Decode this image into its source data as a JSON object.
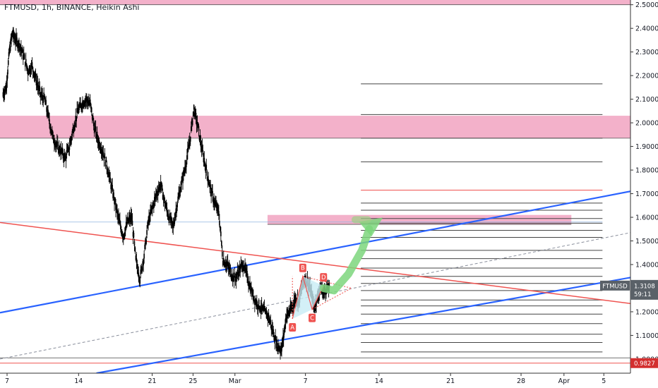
{
  "header": {
    "title": "FTMUSD, 1h, BINANCE, Heikin Ashi"
  },
  "colors": {
    "background": "#ffffff",
    "zone": "#f2a9c4",
    "blue_trend": "#2962ff",
    "red_trend": "#ef5350",
    "up_arrow": "#7cd67c",
    "pattern_fill": "#c8ecf5",
    "price_tag": "#5a6168",
    "low_tag": "#d32f2f",
    "candles": "#000000"
  },
  "chart_data": {
    "type": "line",
    "ylim": [
      0.94,
      2.52
    ],
    "y_ticks": [
      "2.5000",
      "2.4000",
      "2.3000",
      "2.2000",
      "2.1000",
      "2.0000",
      "1.9000",
      "1.8000",
      "1.7000",
      "1.6000",
      "1.5000",
      "1.4000",
      "1.3000",
      "1.2000",
      "1.1000",
      "1.0000"
    ],
    "y_tick_values": [
      2.5,
      2.4,
      2.3,
      2.2,
      2.1,
      2.0,
      1.9,
      1.8,
      1.7,
      1.6,
      1.5,
      1.4,
      1.3,
      1.2,
      1.1,
      1.0
    ],
    "xlim": [
      6.7,
      37.8
    ],
    "x_ticks": [
      "7",
      "14",
      "21",
      "25",
      "Mar",
      "7",
      "14",
      "21",
      "28",
      "Apr",
      "5"
    ],
    "x_tick_values": [
      7,
      14,
      21,
      25,
      29,
      36,
      43,
      50,
      57,
      61,
      65
    ],
    "x_tick_days": [
      7,
      14,
      21,
      25,
      29,
      36,
      43,
      50,
      57,
      61,
      65
    ],
    "price_path": [
      [
        7.0,
        2.12
      ],
      [
        7.3,
        2.15
      ],
      [
        7.6,
        2.3
      ],
      [
        7.9,
        2.38
      ],
      [
        8.2,
        2.35
      ],
      [
        8.6,
        2.33
      ],
      [
        9.0,
        2.28
      ],
      [
        9.4,
        2.22
      ],
      [
        9.8,
        2.24
      ],
      [
        10.2,
        2.18
      ],
      [
        10.6,
        2.12
      ],
      [
        11.0,
        2.1
      ],
      [
        11.4,
        2.02
      ],
      [
        11.8,
        1.94
      ],
      [
        12.2,
        1.9
      ],
      [
        12.6,
        1.88
      ],
      [
        13.0,
        1.85
      ],
      [
        13.4,
        1.9
      ],
      [
        13.8,
        1.98
      ],
      [
        14.2,
        2.05
      ],
      [
        14.6,
        2.08
      ],
      [
        15.0,
        2.1
      ],
      [
        15.4,
        2.08
      ],
      [
        15.8,
        1.98
      ],
      [
        16.2,
        1.92
      ],
      [
        16.6,
        1.88
      ],
      [
        17.0,
        1.82
      ],
      [
        17.4,
        1.74
      ],
      [
        17.8,
        1.66
      ],
      [
        18.2,
        1.58
      ],
      [
        18.6,
        1.52
      ],
      [
        19.0,
        1.58
      ],
      [
        19.4,
        1.6
      ],
      [
        19.8,
        1.42
      ],
      [
        20.2,
        1.34
      ],
      [
        20.6,
        1.44
      ],
      [
        21.0,
        1.58
      ],
      [
        21.4,
        1.64
      ],
      [
        21.8,
        1.7
      ],
      [
        22.2,
        1.74
      ],
      [
        22.6,
        1.66
      ],
      [
        23.0,
        1.6
      ],
      [
        23.4,
        1.56
      ],
      [
        23.8,
        1.66
      ],
      [
        24.2,
        1.74
      ],
      [
        24.6,
        1.82
      ],
      [
        25.0,
        1.92
      ],
      [
        25.4,
        2.06
      ],
      [
        25.8,
        1.98
      ],
      [
        26.2,
        1.88
      ],
      [
        26.6,
        1.8
      ],
      [
        27.0,
        1.72
      ],
      [
        27.4,
        1.66
      ],
      [
        27.8,
        1.62
      ],
      [
        28.2,
        1.42
      ],
      [
        28.6,
        1.4
      ],
      [
        29.0,
        1.36
      ],
      [
        29.4,
        1.34
      ],
      [
        29.8,
        1.38
      ],
      [
        30.2,
        1.4
      ],
      [
        30.6,
        1.34
      ],
      [
        31.0,
        1.28
      ],
      [
        31.4,
        1.24
      ],
      [
        31.8,
        1.22
      ],
      [
        32.2,
        1.2
      ],
      [
        32.6,
        1.18
      ],
      [
        33.0,
        1.12
      ],
      [
        33.4,
        1.06
      ],
      [
        33.8,
        1.04
      ],
      [
        34.0,
        1.08
      ],
      [
        34.3,
        1.18
      ],
      [
        34.6,
        1.2
      ],
      [
        34.9,
        1.22
      ],
      [
        35.2,
        1.26
      ],
      [
        35.5,
        1.24
      ],
      [
        35.8,
        1.3
      ],
      [
        36.1,
        1.34
      ],
      [
        36.4,
        1.32
      ],
      [
        36.7,
        1.28
      ],
      [
        37.0,
        1.22
      ],
      [
        37.3,
        1.26
      ],
      [
        37.6,
        1.3
      ],
      [
        37.9,
        1.28
      ],
      [
        38.2,
        1.3
      ],
      [
        38.5,
        1.3
      ]
    ],
    "pink_zones": [
      {
        "y_low": 2.5,
        "y_high": 2.55
      },
      {
        "y_low": 1.935,
        "y_high": 2.03
      },
      {
        "y_low": 1.57,
        "y_high": 1.61
      }
    ],
    "right_levels": [
      2.165,
      2.035,
      1.935,
      1.835,
      1.715,
      1.66,
      1.63,
      1.595,
      1.575,
      1.545,
      1.515,
      1.46,
      1.425,
      1.385,
      1.35,
      1.32,
      1.29,
      1.25,
      1.225,
      1.19,
      1.15,
      1.105,
      1.07,
      1.03
    ],
    "pattern": {
      "labels": [
        "A",
        "B",
        "C",
        "D"
      ],
      "points": [
        [
          34.9,
          1.17
        ],
        [
          35.9,
          1.35
        ],
        [
          36.8,
          1.21
        ],
        [
          37.9,
          1.31
        ]
      ]
    },
    "last_price_label": "FTMUSD",
    "last_price": "1.3108",
    "countdown": "59:11",
    "low_label": "0.9827"
  }
}
